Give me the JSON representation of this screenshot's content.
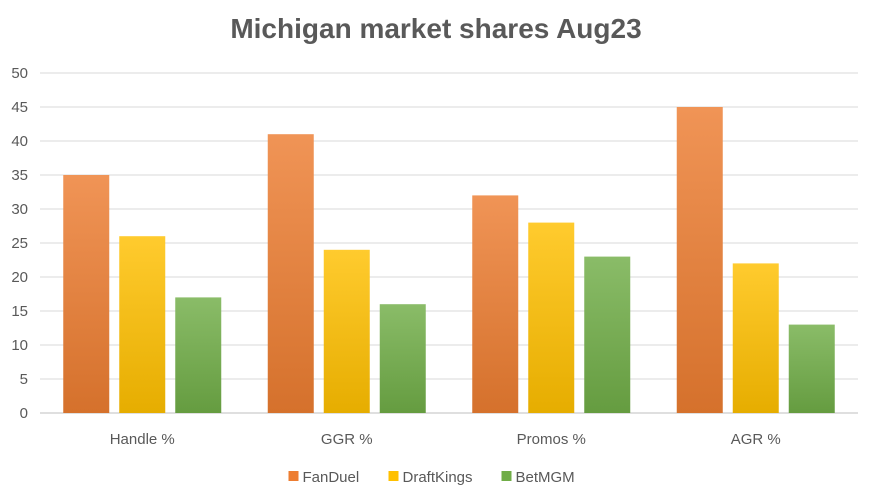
{
  "chart_data": {
    "type": "bar",
    "title": "Michigan market shares Aug23",
    "xlabel": "",
    "ylabel": "",
    "categories": [
      "Handle %",
      "GGR %",
      "Promos %",
      "AGR %"
    ],
    "series": [
      {
        "name": "FanDuel",
        "values": [
          35,
          41,
          32,
          45
        ],
        "color": "#ED7D31"
      },
      {
        "name": "DraftKings",
        "values": [
          26,
          24,
          28,
          22
        ],
        "color": "#FFC000"
      },
      {
        "name": "BetMGM",
        "values": [
          17,
          16,
          23,
          13
        ],
        "color": "#70AD47"
      }
    ],
    "ylim": [
      0,
      50
    ],
    "yticks": [
      0,
      5,
      10,
      15,
      20,
      25,
      30,
      35,
      40,
      45,
      50
    ],
    "grid": true,
    "legend_position": "bottom"
  }
}
